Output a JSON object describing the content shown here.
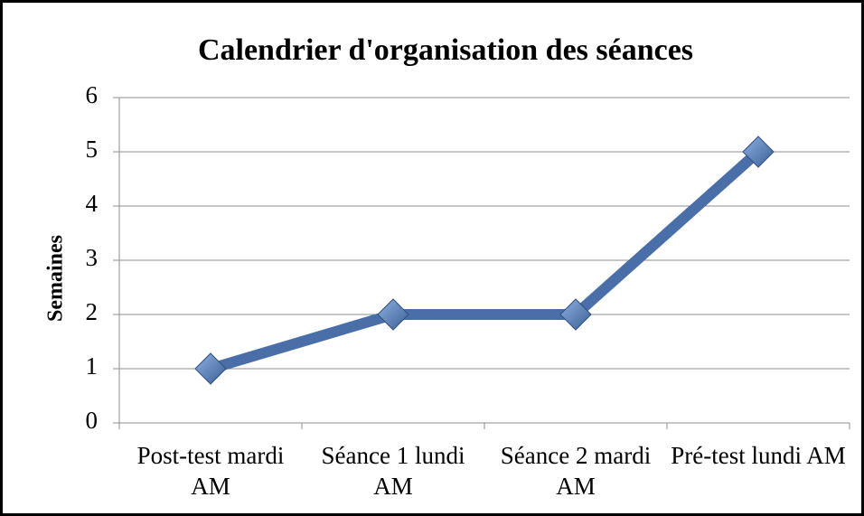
{
  "chart_data": {
    "type": "line",
    "title": "Calendrier d'organisation des séances",
    "y_label": "Semaines",
    "categories": [
      "Post-test mardi AM",
      "Séance 1 lundi AM",
      "Séance 2 mardi AM",
      "Pré-test lundi AM"
    ],
    "values": [
      1,
      2,
      2,
      5
    ],
    "color": "#4a6fa8",
    "ylim": [
      0,
      6
    ],
    "yticks": [
      0,
      1,
      2,
      3,
      4,
      5,
      6
    ],
    "grid": true
  }
}
